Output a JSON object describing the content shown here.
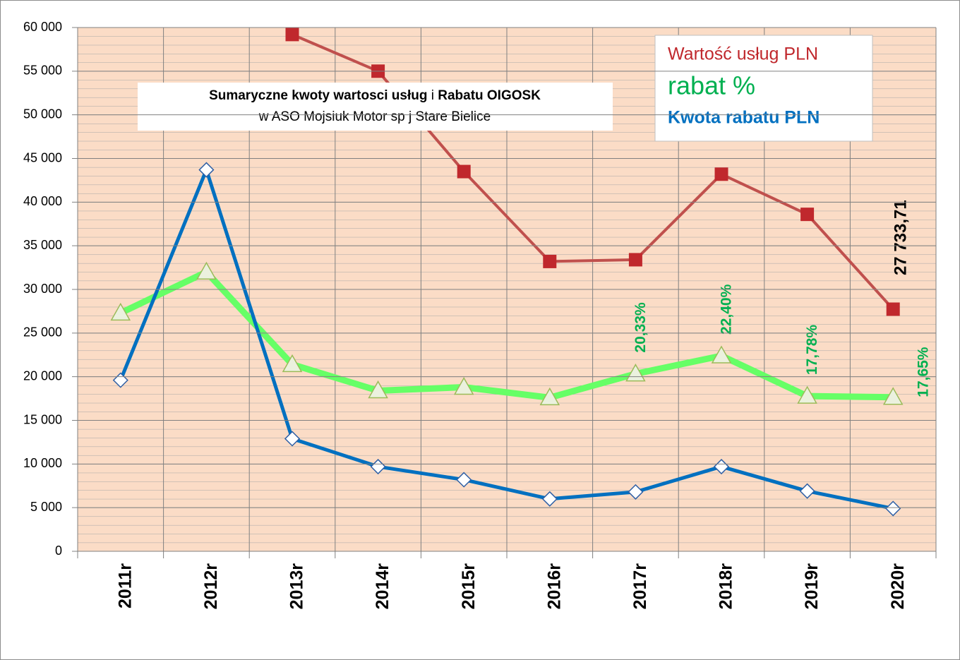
{
  "chart_data": {
    "type": "line",
    "title": [
      "Sumaryczne kwoty wartosci usług",
      "i",
      "Rabatu OIGOSK"
    ],
    "subtitle": "w ASO Mojsiuk Motor sp j Stare Bielice",
    "categories": [
      "2011r",
      "2012r",
      "2013r",
      "2014r",
      "2015r",
      "2016r",
      "2017r",
      "2018r",
      "2019r",
      "2020r"
    ],
    "series": [
      {
        "name": "Wartość usług PLN",
        "color": "#c0504d",
        "marker": "square",
        "values": [
          null,
          null,
          59200,
          55000,
          43500,
          33200,
          33400,
          43200,
          38600,
          27733.71
        ],
        "value_labels": [
          null,
          null,
          null,
          null,
          null,
          null,
          null,
          null,
          null,
          "27 733,71"
        ]
      },
      {
        "name": "rabat %",
        "color": "#66ff66",
        "marker": "triangle",
        "axis": "y2",
        "values": [
          27.3,
          32.0,
          21.4,
          18.4,
          18.8,
          17.6,
          20.33,
          22.4,
          17.78,
          17.65
        ],
        "value_labels": [
          null,
          null,
          null,
          null,
          null,
          null,
          "20,33%",
          "22,40%",
          "17,78%",
          "17,65%"
        ]
      },
      {
        "name": "Kwota rabatu PLN",
        "color": "#0070c0",
        "marker": "diamond",
        "values": [
          19600,
          43700,
          12900,
          9700,
          8200,
          6000,
          6800,
          9700,
          6900,
          4900
        ]
      }
    ],
    "ylim": [
      0,
      60000
    ],
    "yticks": [
      0,
      {
        "value": 5000,
        "label": "5 000"
      },
      {
        "value": 10000,
        "label": "10 000"
      },
      {
        "value": 15000,
        "label": "15 000"
      },
      {
        "value": 20000,
        "label": "20 000"
      },
      {
        "value": 25000,
        "label": "25 000"
      },
      {
        "value": 30000,
        "label": "30 000"
      },
      {
        "value": 35000,
        "label": "35 000"
      },
      {
        "value": 40000,
        "label": "40 000"
      },
      {
        "value": 45000,
        "label": "45 000"
      },
      {
        "value": 50000,
        "label": "50 000"
      },
      {
        "value": 55000,
        "label": "55 000"
      },
      {
        "value": 60000,
        "label": "60 000"
      }
    ],
    "y2lim": [
      0,
      60
    ],
    "grid": true
  }
}
